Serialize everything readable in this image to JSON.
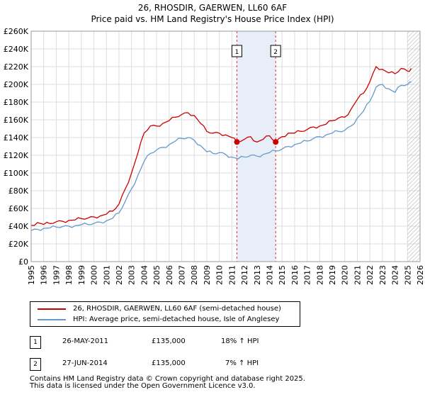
{
  "title_line1": "26, RHOSDIR, GAERWEN, LL60 6AF",
  "title_line2": "Price paid vs. HM Land Registry's House Price Index (HPI)",
  "chart_data": {
    "type": "line",
    "xlim": [
      1995,
      2026
    ],
    "ylim": [
      0,
      260000
    ],
    "x_ticks": [
      "1995",
      "1996",
      "1997",
      "1998",
      "1999",
      "2000",
      "2001",
      "2002",
      "2003",
      "2004",
      "2005",
      "2006",
      "2007",
      "2008",
      "2009",
      "2010",
      "2011",
      "2012",
      "2013",
      "2014",
      "2015",
      "2016",
      "2017",
      "2018",
      "2019",
      "2020",
      "2021",
      "2022",
      "2023",
      "2024",
      "2025",
      "2026"
    ],
    "y_ticks": [
      "£0",
      "£20K",
      "£40K",
      "£60K",
      "£80K",
      "£100K",
      "£120K",
      "£140K",
      "£160K",
      "£180K",
      "£200K",
      "£220K",
      "£240K",
      "£260K"
    ],
    "grid": true,
    "colors": {
      "property": "#cc0000",
      "hpi": "#6699cc",
      "shade": "#e8eef8",
      "marker_line": "#dd3333",
      "hatch": "#999999"
    },
    "series": [
      {
        "name": "26, RHOSDIR, GAERWEN, LL60 6AF (semi-detached house)",
        "color": "#cc0000",
        "x": [
          1995.0,
          1995.5,
          1996.0,
          1996.5,
          1997.0,
          1997.5,
          1998.0,
          1998.5,
          1999.0,
          1999.5,
          2000.0,
          2000.5,
          2001.0,
          2001.5,
          2002.0,
          2002.5,
          2003.0,
          2003.5,
          2004.0,
          2004.5,
          2005.0,
          2005.5,
          2006.0,
          2006.5,
          2007.0,
          2007.5,
          2008.0,
          2008.5,
          2009.0,
          2009.5,
          2010.0,
          2010.5,
          2011.0,
          2011.4,
          2012.0,
          2012.5,
          2013.0,
          2013.5,
          2014.0,
          2014.49,
          2015.0,
          2015.5,
          2016.0,
          2016.5,
          2017.0,
          2017.5,
          2018.0,
          2018.5,
          2019.0,
          2019.5,
          2020.0,
          2020.5,
          2021.0,
          2021.5,
          2022.0,
          2022.5,
          2023.0,
          2023.5,
          2024.0,
          2024.5,
          2025.0,
          2025.3
        ],
        "values": [
          41000,
          44000,
          42000,
          43000,
          45000,
          45500,
          46500,
          47000,
          48500,
          49000,
          50500,
          51500,
          53500,
          57000,
          65000,
          82000,
          100000,
          122000,
          145000,
          153000,
          153000,
          156000,
          159000,
          163000,
          166000,
          168000,
          165000,
          156000,
          147000,
          145000,
          145000,
          143000,
          140000,
          135000,
          138000,
          141000,
          135000,
          138000,
          142000,
          135000,
          141000,
          145000,
          145000,
          147000,
          149000,
          152000,
          153000,
          155000,
          159000,
          162000,
          163000,
          172000,
          183000,
          190000,
          203000,
          220000,
          217000,
          213000,
          212000,
          218000,
          215000,
          218000
        ]
      },
      {
        "name": "HPI: Average price, semi-detached house, Isle of Anglesey",
        "color": "#6699cc",
        "x": [
          1995.0,
          1995.5,
          1996.0,
          1996.5,
          1997.0,
          1997.5,
          1998.0,
          1998.5,
          1999.0,
          1999.5,
          2000.0,
          2000.5,
          2001.0,
          2001.5,
          2002.0,
          2002.5,
          2003.0,
          2003.5,
          2004.0,
          2004.5,
          2005.0,
          2005.5,
          2006.0,
          2006.5,
          2007.0,
          2007.5,
          2008.0,
          2008.5,
          2009.0,
          2009.5,
          2010.0,
          2010.5,
          2011.0,
          2011.5,
          2012.0,
          2012.5,
          2013.0,
          2013.5,
          2014.0,
          2014.5,
          2015.0,
          2015.5,
          2016.0,
          2016.5,
          2017.0,
          2017.5,
          2018.0,
          2018.5,
          2019.0,
          2019.5,
          2020.0,
          2020.5,
          2021.0,
          2021.5,
          2022.0,
          2022.5,
          2023.0,
          2023.5,
          2024.0,
          2024.5,
          2025.0,
          2025.3
        ],
        "values": [
          35000,
          36500,
          37500,
          38000,
          39000,
          39500,
          40000,
          40500,
          41500,
          42000,
          43000,
          44500,
          46000,
          49000,
          55000,
          68000,
          82000,
          97000,
          113000,
          122000,
          126000,
          129000,
          132000,
          136000,
          139000,
          140000,
          137000,
          131000,
          124000,
          122000,
          123000,
          121000,
          118000,
          116000,
          118000,
          120000,
          119000,
          121000,
          123000,
          125000,
          127000,
          130000,
          132000,
          134000,
          136000,
          139000,
          141000,
          143000,
          145000,
          147000,
          148000,
          153000,
          162000,
          170000,
          181000,
          197000,
          200000,
          195000,
          191000,
          199000,
          200000,
          203000
        ]
      }
    ],
    "sales": [
      {
        "label": "1",
        "x": 2011.4,
        "y": 135000,
        "date": "26-MAY-2011",
        "price": "£135,000",
        "hpi": "18% ↑ HPI"
      },
      {
        "label": "2",
        "x": 2014.49,
        "y": 135000,
        "date": "27-JUN-2014",
        "price": "£135,000",
        "hpi": "7% ↑ HPI"
      }
    ],
    "shaded_range": [
      2011.4,
      2014.49
    ],
    "forecast_from": 2025.0
  },
  "legend": {
    "property_label": "26, RHOSDIR, GAERWEN, LL60 6AF (semi-detached house)",
    "hpi_label": "HPI: Average price, semi-detached house, Isle of Anglesey"
  },
  "annotations": [
    {
      "num": "1",
      "date": "26-MAY-2011",
      "price": "£135,000",
      "hpi": "18% ↑ HPI"
    },
    {
      "num": "2",
      "date": "27-JUN-2014",
      "price": "£135,000",
      "hpi": "7% ↑ HPI"
    }
  ],
  "footer_line1": "Contains HM Land Registry data © Crown copyright and database right 2025.",
  "footer_line2": "This data is licensed under the Open Government Licence v3.0."
}
